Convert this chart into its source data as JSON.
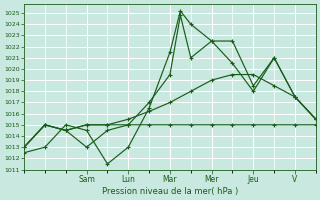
{
  "title": "Pression niveau de la mer( hPa )",
  "bg_color": "#c8e8e0",
  "grid_color": "#ffffff",
  "line_color": "#1a5c1a",
  "ylim": [
    1011,
    1025.8
  ],
  "yticks": [
    1011,
    1012,
    1013,
    1014,
    1015,
    1016,
    1017,
    1018,
    1019,
    1020,
    1021,
    1022,
    1023,
    1024,
    1025
  ],
  "xlim": [
    0,
    14
  ],
  "x_day_labels": [
    "Sam",
    "Lun",
    "Mar",
    "Mer",
    "Jeu",
    "V"
  ],
  "x_day_pos": [
    3,
    5,
    7,
    9,
    11,
    13
  ],
  "lines": [
    {
      "x": [
        0,
        1,
        2,
        3,
        4,
        5,
        6,
        7,
        7.5,
        8,
        9,
        10,
        11,
        12,
        13,
        14
      ],
      "y": [
        1012.5,
        1013,
        1015,
        1014.5,
        1011.5,
        1013,
        1016.5,
        1021.5,
        1025.2,
        1024,
        1022.5,
        1022.5,
        1018.5,
        1021,
        1017.5,
        1015.5
      ],
      "marker": "+"
    },
    {
      "x": [
        0,
        1,
        2,
        3,
        4,
        5,
        6,
        7,
        7.5,
        8,
        9,
        10,
        11,
        12,
        13,
        14
      ],
      "y": [
        1013,
        1015,
        1014.5,
        1013,
        1014.5,
        1015,
        1017,
        1019.5,
        1024.8,
        1021,
        1022.5,
        1020.5,
        1018,
        1021,
        1017.5,
        1015.5
      ],
      "marker": "+"
    },
    {
      "x": [
        0,
        1,
        2,
        3,
        4,
        5,
        6,
        7,
        8,
        9,
        10,
        11,
        12,
        13,
        14
      ],
      "y": [
        1013,
        1015,
        1014.5,
        1015,
        1015,
        1015.5,
        1016.2,
        1017,
        1018,
        1019,
        1019.5,
        1019.5,
        1018.5,
        1017.5,
        1015.5
      ],
      "marker": "+"
    },
    {
      "x": [
        0,
        1,
        2,
        3,
        4,
        5,
        6,
        7,
        8,
        9,
        10,
        11,
        12,
        13,
        14
      ],
      "y": [
        1013,
        1015,
        1014.5,
        1015,
        1015,
        1015,
        1015,
        1015,
        1015,
        1015,
        1015,
        1015,
        1015,
        1015,
        1015
      ],
      "marker": "+"
    }
  ]
}
